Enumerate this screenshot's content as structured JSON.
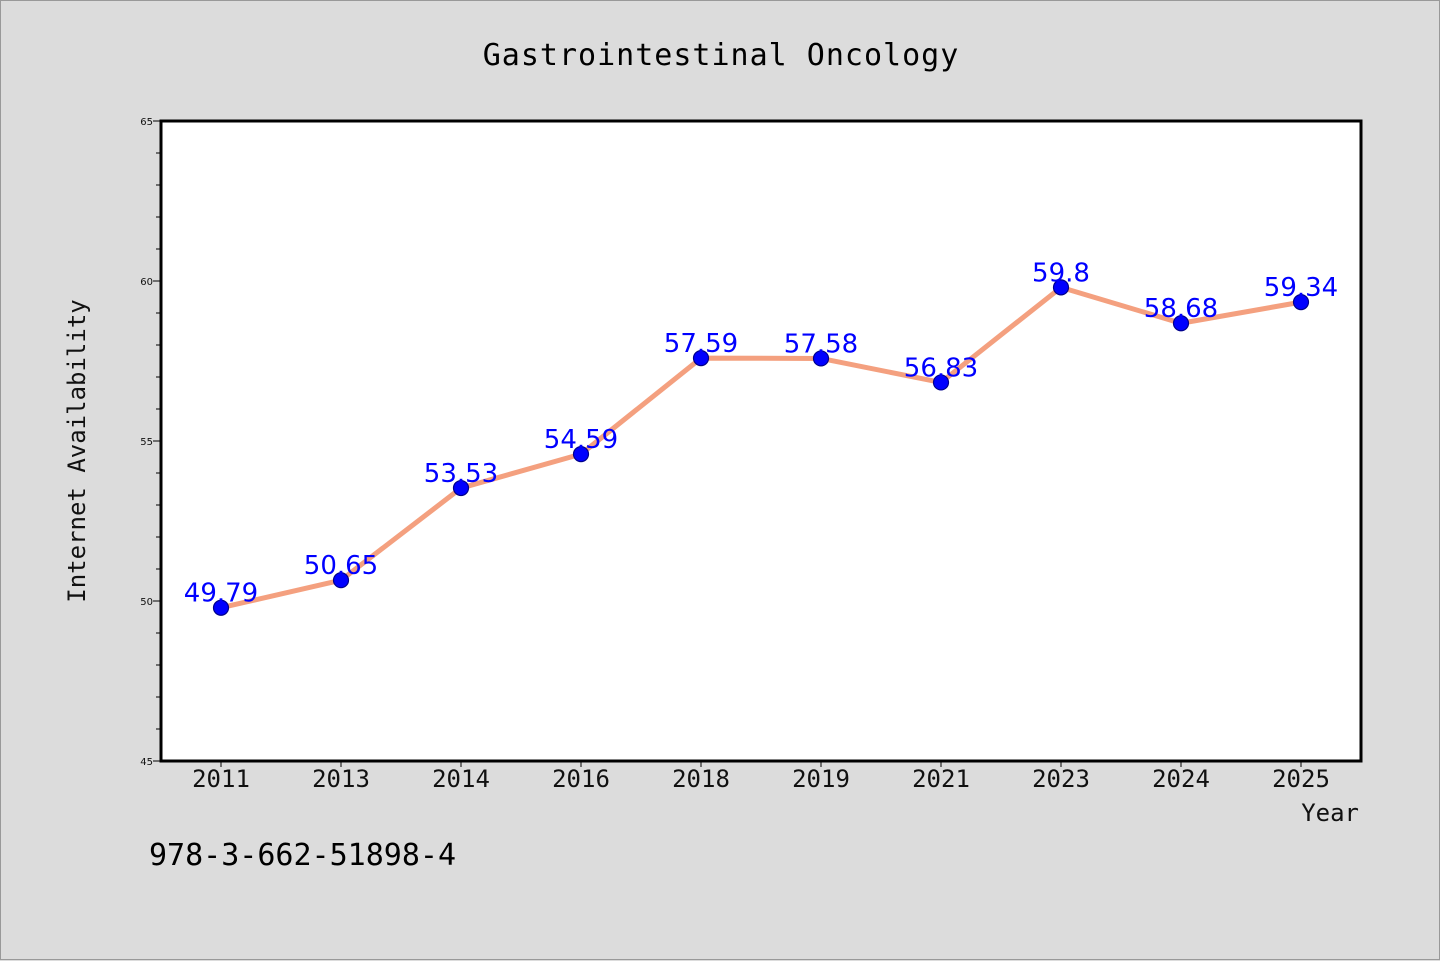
{
  "chart_data": {
    "type": "line",
    "title": "Gastrointestinal Oncology",
    "xlabel": "Year",
    "ylabel": "Internet Availability",
    "categories": [
      "2011",
      "2013",
      "2014",
      "2016",
      "2018",
      "2019",
      "2021",
      "2023",
      "2024",
      "2025"
    ],
    "series": [
      {
        "values": [
          49.79,
          50.65,
          53.53,
          54.59,
          57.59,
          57.58,
          56.83,
          59.8,
          58.68,
          59.34
        ]
      }
    ],
    "data_labels": [
      "49.79",
      "50.65",
      "53.53",
      "54.59",
      "57.59",
      "57.58",
      "56.83",
      "59.8",
      "58.68",
      "59.34"
    ],
    "ylim": [
      45,
      65
    ],
    "yticks": [
      45,
      50,
      55,
      60,
      65
    ],
    "grid": false,
    "legend": "none",
    "colors": {
      "line": "#f4a07f",
      "marker": "#0000ff",
      "marker_edge": "#00008b",
      "data_label": "#0000ff",
      "plot_background": "#ffffff",
      "figure_background": "#dcdcdc"
    }
  },
  "annotation": {
    "isbn": "978-3-662-51898-4"
  }
}
